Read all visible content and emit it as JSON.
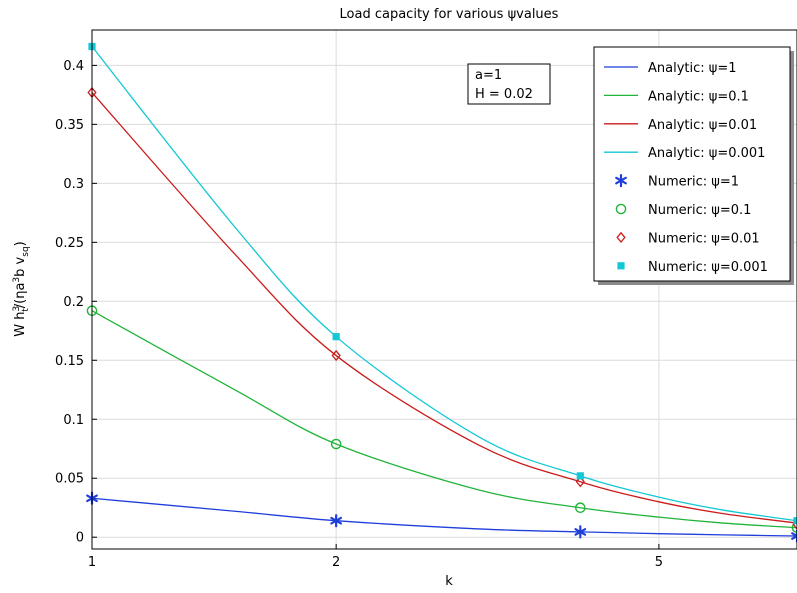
{
  "chart_data": {
    "type": "line",
    "title": "Load capacity for various ψvalues",
    "xlabel": "k",
    "ylabel": {
      "parts": [
        "W h",
        "3",
        "t",
        "/(ηa",
        "3",
        "b v",
        "sq",
        ")"
      ]
    },
    "x_scale": "log",
    "xlim": [
      1,
      7.4
    ],
    "ylim": [
      -0.01,
      0.43
    ],
    "x_ticks": [
      1,
      2,
      5
    ],
    "x_tick_labels": [
      "1",
      "2",
      "5"
    ],
    "y_ticks": [
      0,
      0.05,
      0.1,
      0.15,
      0.2,
      0.25,
      0.3,
      0.35,
      0.4
    ],
    "y_tick_labels": [
      "0",
      "0.05",
      "0.1",
      "0.15",
      "0.2",
      "0.25",
      "0.3",
      "0.35",
      "0.4"
    ],
    "grid": true,
    "legend_position": "top-right",
    "annotation": [
      "a=1",
      "H = 0.02"
    ],
    "analytic_series": [
      {
        "name": "Analytic: ψ=1",
        "color": "#1f3fdc",
        "x": [
          1,
          1.5,
          2,
          3,
          4,
          5,
          6,
          7.4
        ],
        "y": [
          0.033,
          0.022,
          0.014,
          0.007,
          0.0045,
          0.003,
          0.002,
          0.001
        ]
      },
      {
        "name": "Analytic: ψ=0.1",
        "color": "#22b43a",
        "x": [
          1,
          1.5,
          2,
          3,
          4,
          5,
          6,
          7.4
        ],
        "y": [
          0.192,
          0.125,
          0.079,
          0.04,
          0.025,
          0.017,
          0.012,
          0.008
        ]
      },
      {
        "name": "Analytic: ψ=0.01",
        "color": "#cc1a1a",
        "x": [
          1,
          1.5,
          2,
          3,
          4,
          5,
          6,
          7.4
        ],
        "y": [
          0.377,
          0.24,
          0.154,
          0.078,
          0.047,
          0.03,
          0.02,
          0.012
        ]
      },
      {
        "name": "Analytic: ψ=0.001",
        "color": "#12c8d4",
        "x": [
          1,
          1.5,
          2,
          3,
          4,
          5,
          6,
          7.4
        ],
        "y": [
          0.416,
          0.263,
          0.17,
          0.085,
          0.052,
          0.034,
          0.023,
          0.014
        ]
      }
    ],
    "numeric_series": [
      {
        "name": "Numeric: ψ=1",
        "marker": "asterisk",
        "color": "#1f3fdc",
        "x": [
          1,
          2,
          4,
          7.4
        ],
        "y": [
          0.033,
          0.014,
          0.0045,
          0.001
        ]
      },
      {
        "name": "Numeric: ψ=0.1",
        "marker": "circle",
        "color": "#22b43a",
        "x": [
          1,
          2,
          4,
          7.4
        ],
        "y": [
          0.192,
          0.079,
          0.025,
          0.008
        ]
      },
      {
        "name": "Numeric: ψ=0.01",
        "marker": "diamond",
        "color": "#cc1a1a",
        "x": [
          1,
          2,
          4,
          7.4
        ],
        "y": [
          0.377,
          0.154,
          0.047,
          0.011
        ]
      },
      {
        "name": "Numeric: ψ=0.001",
        "marker": "square",
        "color": "#12c8d4",
        "x": [
          1,
          2,
          4,
          7.4
        ],
        "y": [
          0.416,
          0.17,
          0.052,
          0.014
        ]
      }
    ]
  }
}
